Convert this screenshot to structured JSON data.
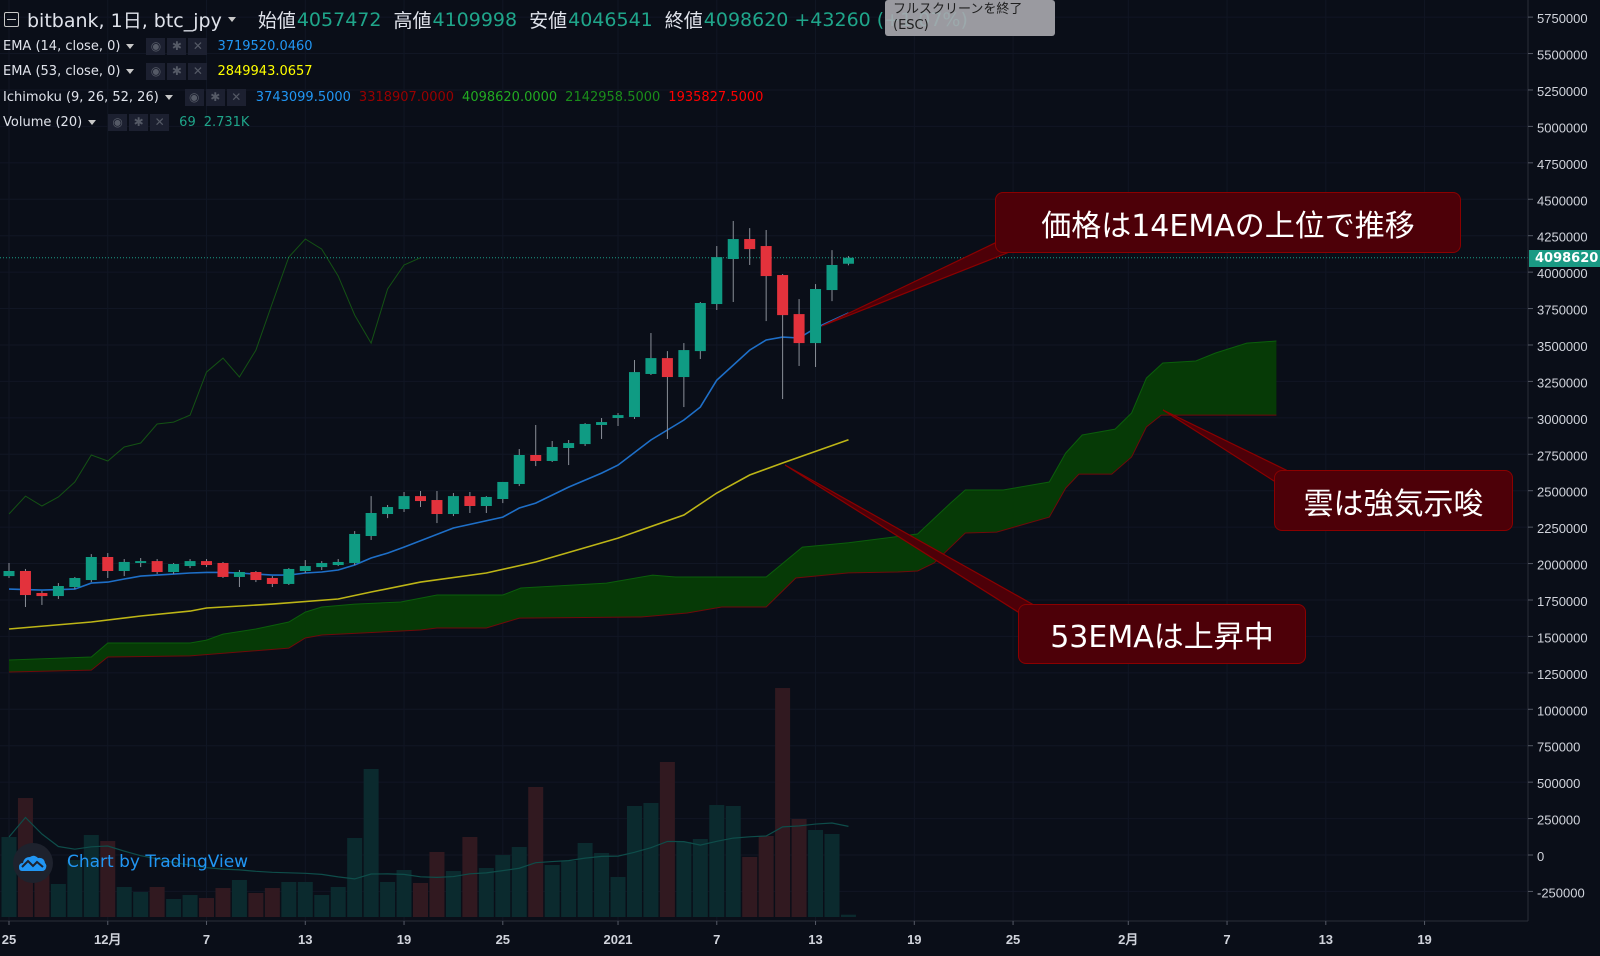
{
  "header": {
    "symbol": "bitbank, 1日, btc_jpy",
    "open_label": "始値",
    "open": "4057472",
    "high_label": "高値",
    "high": "4109998",
    "low_label": "安値",
    "low": "4046541",
    "close_label": "終値",
    "close": "4098620",
    "change": "+43260 (+1.07%)"
  },
  "fullscreen_tooltip": {
    "line1": "フルスクリーンを終了",
    "line2": "(ESC)"
  },
  "indicators": [
    {
      "name": "EMA (14, close, 0)",
      "values": [
        "3719520.0460"
      ],
      "colors": [
        "#2196f3"
      ]
    },
    {
      "name": "EMA (53, close, 0)",
      "values": [
        "2849943.0657"
      ],
      "colors": [
        "#ffff00"
      ]
    },
    {
      "name": "Ichimoku (9, 26, 52, 26)",
      "values": [
        "3743099.5000",
        "3318907.0000",
        "4098620.0000",
        "2142958.5000",
        "1935827.5000"
      ],
      "colors": [
        "#2196f3",
        "#990000",
        "#22aa22",
        "#1a8c1a",
        "#ff0000"
      ]
    },
    {
      "name": "Volume (20)",
      "values": [
        "69",
        "2.731K"
      ],
      "colors": [
        "#1fa58a",
        "#1fa58a"
      ]
    }
  ],
  "annotations": [
    {
      "text": "価格は14EMAの上位で推移"
    },
    {
      "text": "雲は強気示唆"
    },
    {
      "text": "53EMAは上昇中"
    }
  ],
  "current_price_label": "4098620",
  "branding": {
    "text": "Chart by TradingView"
  },
  "colors": {
    "up": "#0f9b83",
    "down": "#e3323c",
    "ema14": "#1e6fc8",
    "ema53": "#bdb516",
    "cloud": "#063a06",
    "spanA": "#0b5e0b",
    "spanB": "#6e0a0a",
    "chikou": "#145214",
    "vol_up": "#0b2a2e",
    "vol_down": "#311920"
  },
  "chart_data": {
    "type": "candlestick",
    "symbol": "btc_jpy",
    "interval": "1日",
    "ylim": [
      -250000,
      5750000
    ],
    "y_ticks": [
      "5750000",
      "5500000",
      "5250000",
      "5000000",
      "4750000",
      "4500000",
      "4250000",
      "4000000",
      "3750000",
      "3500000",
      "3250000",
      "3000000",
      "2750000",
      "2500000",
      "2250000",
      "2000000",
      "1750000",
      "1500000",
      "1250000",
      "1000000",
      "750000",
      "500000",
      "250000",
      "0",
      "-250000"
    ],
    "x_ticks": [
      {
        "label": "25",
        "day": 0
      },
      {
        "label": "12月",
        "day": 6
      },
      {
        "label": "7",
        "day": 12
      },
      {
        "label": "13",
        "day": 18
      },
      {
        "label": "19",
        "day": 24
      },
      {
        "label": "25",
        "day": 30
      },
      {
        "label": "2021",
        "day": 37
      },
      {
        "label": "7",
        "day": 43
      },
      {
        "label": "13",
        "day": 49
      },
      {
        "label": "19",
        "day": 55
      },
      {
        "label": "25",
        "day": 61
      },
      {
        "label": "2月",
        "day": 68
      },
      {
        "label": "7",
        "day": 74
      },
      {
        "label": "13",
        "day": 80
      },
      {
        "label": "19",
        "day": 86
      }
    ],
    "ohlc": [
      [
        1914000,
        2004000,
        1901000,
        1949000
      ],
      [
        1949000,
        1963000,
        1702000,
        1784000
      ],
      [
        1798000,
        1812000,
        1716000,
        1777000
      ],
      [
        1777000,
        1866000,
        1757000,
        1846000
      ],
      [
        1839000,
        1908000,
        1825000,
        1901000
      ],
      [
        1887000,
        2065000,
        1873000,
        2045000
      ],
      [
        2045000,
        2072000,
        1901000,
        1949000
      ],
      [
        1949000,
        2031000,
        1914000,
        2011000
      ],
      [
        2004000,
        2038000,
        1976000,
        2017000
      ],
      [
        2017000,
        2031000,
        1928000,
        1942000
      ],
      [
        1942000,
        2004000,
        1928000,
        1997000
      ],
      [
        1983000,
        2031000,
        1969000,
        2017000
      ],
      [
        2017000,
        2031000,
        1976000,
        1990000
      ],
      [
        2004000,
        2011000,
        1901000,
        1908000
      ],
      [
        1908000,
        1956000,
        1839000,
        1942000
      ],
      [
        1942000,
        1949000,
        1873000,
        1887000
      ],
      [
        1901000,
        1914000,
        1839000,
        1860000
      ],
      [
        1860000,
        1969000,
        1853000,
        1963000
      ],
      [
        1949000,
        2024000,
        1935000,
        1983000
      ],
      [
        1976000,
        2017000,
        1956000,
        2004000
      ],
      [
        1990000,
        2031000,
        1983000,
        2011000
      ],
      [
        2004000,
        2223000,
        1990000,
        2203000
      ],
      [
        2189000,
        2463000,
        2162000,
        2347000
      ],
      [
        2340000,
        2402000,
        2312000,
        2388000
      ],
      [
        2374000,
        2491000,
        2354000,
        2463000
      ],
      [
        2463000,
        2498000,
        2388000,
        2429000
      ],
      [
        2436000,
        2498000,
        2278000,
        2340000
      ],
      [
        2340000,
        2484000,
        2326000,
        2463000
      ],
      [
        2463000,
        2491000,
        2347000,
        2395000
      ],
      [
        2395000,
        2463000,
        2347000,
        2457000
      ],
      [
        2443000,
        2560000,
        2415000,
        2560000
      ],
      [
        2546000,
        2786000,
        2532000,
        2745000
      ],
      [
        2745000,
        2951000,
        2669000,
        2704000
      ],
      [
        2704000,
        2841000,
        2697000,
        2800000
      ],
      [
        2793000,
        2848000,
        2676000,
        2827000
      ],
      [
        2820000,
        2964000,
        2807000,
        2958000
      ],
      [
        2951000,
        2999000,
        2855000,
        2971000
      ],
      [
        2999000,
        3033000,
        2944000,
        3019000
      ],
      [
        3006000,
        3397000,
        2992000,
        3314000
      ],
      [
        3301000,
        3582000,
        3294000,
        3410000
      ],
      [
        3410000,
        3458000,
        2855000,
        3280000
      ],
      [
        3280000,
        3513000,
        3074000,
        3465000
      ],
      [
        3458000,
        3795000,
        3404000,
        3788000
      ],
      [
        3781000,
        4179000,
        3740000,
        4103000
      ],
      [
        4090000,
        4351000,
        3795000,
        4227000
      ],
      [
        4227000,
        4302000,
        4049000,
        4158000
      ],
      [
        4179000,
        4289000,
        3664000,
        3973000
      ],
      [
        3980000,
        3987000,
        3129000,
        3705000
      ],
      [
        3712000,
        3815000,
        3356000,
        3513000
      ],
      [
        3513000,
        3918000,
        3349000,
        3884000
      ],
      [
        3877000,
        4151000,
        3801000,
        4049000
      ],
      [
        4057472,
        4109998,
        4046541,
        4098620
      ]
    ],
    "volume": [
      2376,
      3534,
      1485,
      980,
      1693,
      2435,
      2257,
      891,
      743,
      891,
      535,
      653,
      564,
      861,
      1099,
      713,
      861,
      1040,
      1040,
      653,
      891,
      2346,
      4396,
      1040,
      1396,
      1010,
      1931,
      1366,
      2376,
      1455,
      1841,
      2079,
      3861,
      1544,
      1663,
      2198,
      1901,
      1188,
      3297,
      3386,
      4604,
      2228,
      2317,
      3326,
      3297,
      1782,
      2406,
      6801,
      2911,
      2584,
      2465,
      69
    ],
    "ema14": [
      [
        0,
        1825000
      ],
      [
        2,
        1818000
      ],
      [
        4,
        1825000
      ],
      [
        5,
        1866000
      ],
      [
        6,
        1873000
      ],
      [
        7,
        1894000
      ],
      [
        8,
        1914000
      ],
      [
        9,
        1921000
      ],
      [
        10,
        1928000
      ],
      [
        11,
        1935000
      ],
      [
        12,
        1939000
      ],
      [
        13,
        1939000
      ],
      [
        14,
        1935000
      ],
      [
        15,
        1928000
      ],
      [
        16,
        1921000
      ],
      [
        17,
        1921000
      ],
      [
        18,
        1935000
      ],
      [
        19,
        1942000
      ],
      [
        20,
        1956000
      ],
      [
        21,
        1990000
      ],
      [
        22,
        2038000
      ],
      [
        23,
        2072000
      ],
      [
        24,
        2113000
      ],
      [
        27,
        2244000
      ],
      [
        30,
        2319000
      ],
      [
        31,
        2381000
      ],
      [
        32,
        2415000
      ],
      [
        34,
        2525000
      ],
      [
        36,
        2621000
      ],
      [
        37,
        2676000
      ],
      [
        39,
        2848000
      ],
      [
        41,
        2985000
      ],
      [
        42,
        3074000
      ],
      [
        43,
        3259000
      ],
      [
        45,
        3465000
      ],
      [
        46,
        3534000
      ],
      [
        47,
        3554000
      ],
      [
        48,
        3548000
      ],
      [
        49,
        3616000
      ],
      [
        51,
        3719520
      ]
    ],
    "ema53": [
      [
        0,
        1551000
      ],
      [
        5,
        1599000
      ],
      [
        8,
        1640000
      ],
      [
        11,
        1674000
      ],
      [
        12,
        1695000
      ],
      [
        16,
        1722000
      ],
      [
        20,
        1757000
      ],
      [
        22,
        1805000
      ],
      [
        25,
        1873000
      ],
      [
        29,
        1935000
      ],
      [
        32,
        2011000
      ],
      [
        37,
        2175000
      ],
      [
        41,
        2333000
      ],
      [
        43,
        2484000
      ],
      [
        45,
        2608000
      ],
      [
        47,
        2690000
      ],
      [
        51,
        2849943
      ]
    ],
    "senkou_a": [
      [
        0,
        1338000
      ],
      [
        5,
        1359000
      ],
      [
        6,
        1455000
      ],
      [
        11,
        1455000
      ],
      [
        12,
        1475000
      ],
      [
        13,
        1516000
      ],
      [
        15,
        1551000
      ],
      [
        17,
        1599000
      ],
      [
        18,
        1667000
      ],
      [
        19,
        1702000
      ],
      [
        21,
        1722000
      ],
      [
        23.8,
        1736000
      ],
      [
        26,
        1784000
      ],
      [
        30,
        1784000
      ],
      [
        31.1,
        1832000
      ],
      [
        36.3,
        1866000
      ],
      [
        39.1,
        1921000
      ],
      [
        40.5,
        1908000
      ],
      [
        46,
        1908000
      ],
      [
        48.2,
        2113000
      ],
      [
        51,
        2142958
      ],
      [
        55.2,
        2203000
      ],
      [
        57.2,
        2415000
      ],
      [
        58.1,
        2505000
      ],
      [
        60.4,
        2505000
      ],
      [
        63.2,
        2560000
      ],
      [
        64.2,
        2759000
      ],
      [
        65.2,
        2882000
      ],
      [
        67.2,
        2923000
      ],
      [
        68.2,
        3033000
      ],
      [
        69.1,
        3273000
      ],
      [
        70.1,
        3376000
      ],
      [
        72.1,
        3390000
      ],
      [
        73.3,
        3445000
      ],
      [
        75.2,
        3513000
      ],
      [
        77,
        3527000
      ]
    ],
    "senkou_b": [
      [
        0,
        1256000
      ],
      [
        5,
        1269000
      ],
      [
        6,
        1359000
      ],
      [
        11,
        1366000
      ],
      [
        17,
        1420000
      ],
      [
        18,
        1489000
      ],
      [
        19,
        1510000
      ],
      [
        25,
        1544000
      ],
      [
        26,
        1558000
      ],
      [
        29,
        1558000
      ],
      [
        31,
        1626000
      ],
      [
        38.4,
        1633000
      ],
      [
        41.2,
        1661000
      ],
      [
        43.3,
        1702000
      ],
      [
        46,
        1702000
      ],
      [
        47.8,
        1901000
      ],
      [
        51,
        1935827
      ],
      [
        54,
        1942000
      ],
      [
        55.2,
        1949000
      ],
      [
        56.2,
        2004000
      ],
      [
        58.1,
        2210000
      ],
      [
        60,
        2216000
      ],
      [
        63.2,
        2319000
      ],
      [
        64.2,
        2518000
      ],
      [
        65,
        2614000
      ],
      [
        67,
        2614000
      ],
      [
        68.2,
        2731000
      ],
      [
        69.1,
        2937000
      ],
      [
        70,
        3019000
      ],
      [
        77,
        3019000
      ]
    ]
  }
}
